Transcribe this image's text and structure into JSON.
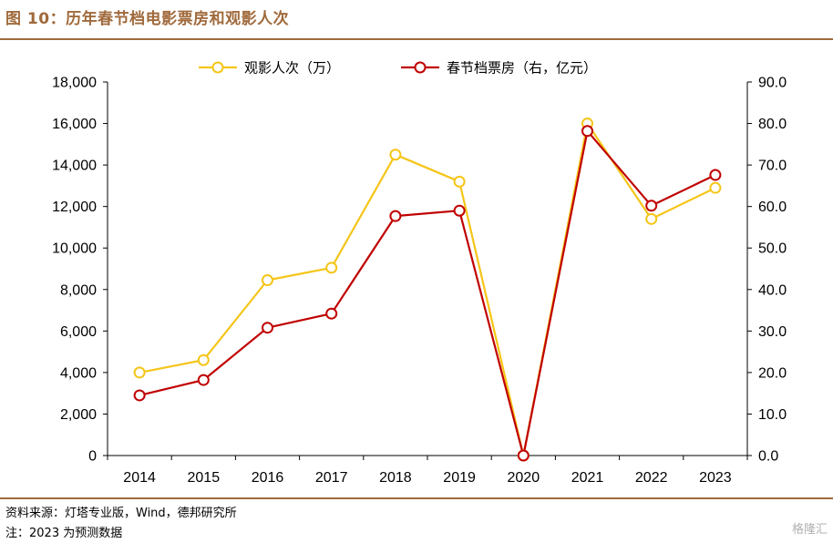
{
  "header": {
    "title": "图 10：历年春节档电影票房和观影人次"
  },
  "footer": {
    "source": "资料来源：灯塔专业版，Wind，德邦研究所",
    "note": "注：2023 为预测数据",
    "watermark": "格隆汇"
  },
  "colors": {
    "accent": "#a06a3c",
    "audience": "#f5c518",
    "boxoffice": "#c00000"
  },
  "chart_data": {
    "type": "line",
    "title": "",
    "categories": [
      "2014",
      "2015",
      "2016",
      "2017",
      "2018",
      "2019",
      "2020",
      "2021",
      "2022",
      "2023"
    ],
    "series": [
      {
        "name": "观影人次（万）",
        "axis": "left",
        "color": "#f5c518",
        "values": [
          4000,
          4600,
          8450,
          9050,
          14500,
          13200,
          0,
          16000,
          11400,
          12900
        ]
      },
      {
        "name": "春节档票房（右，亿元）",
        "axis": "right",
        "color": "#c00000",
        "values": [
          14.5,
          18.2,
          30.8,
          34.2,
          57.7,
          59.0,
          0.0,
          78.2,
          60.2,
          67.6
        ]
      }
    ],
    "y_left": {
      "ylim": [
        0,
        18000
      ],
      "ticks": [
        "0",
        "2,000",
        "4,000",
        "6,000",
        "8,000",
        "10,000",
        "12,000",
        "14,000",
        "16,000",
        "18,000"
      ]
    },
    "y_right": {
      "ylim": [
        0,
        90
      ],
      "ticks": [
        "0.0",
        "10.0",
        "20.0",
        "30.0",
        "40.0",
        "50.0",
        "60.0",
        "70.0",
        "80.0",
        "90.0"
      ]
    },
    "legend_placement": "top-center",
    "grid": false
  }
}
